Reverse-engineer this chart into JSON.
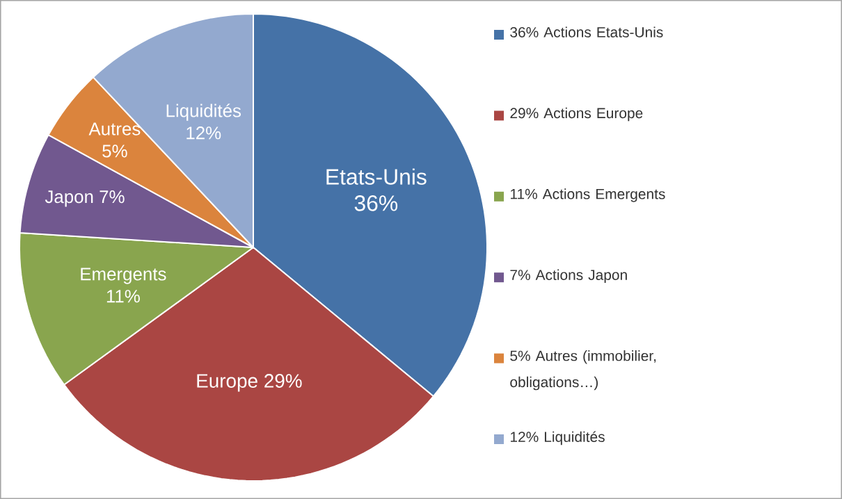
{
  "chart_data": {
    "type": "pie",
    "categories": [
      "36% Actions Etats-Unis",
      "29% Actions Europe",
      "11% Actions Emergents",
      "7% Actions Japon",
      "5% Autres (immobilier, obligations…)",
      "12% Liquidités"
    ],
    "values": [
      36,
      29,
      11,
      7,
      5,
      12
    ],
    "colors": [
      "#4572a7",
      "#aa4643",
      "#89a54e",
      "#71588f",
      "#db843d",
      "#93a9cf"
    ],
    "value_labels": [
      "Etats-Unis 36%",
      "Europe 29%",
      "Emergents 11%",
      "Japon 7%",
      "Autres 5%",
      "Liquidités 12%"
    ],
    "legend": "right"
  }
}
